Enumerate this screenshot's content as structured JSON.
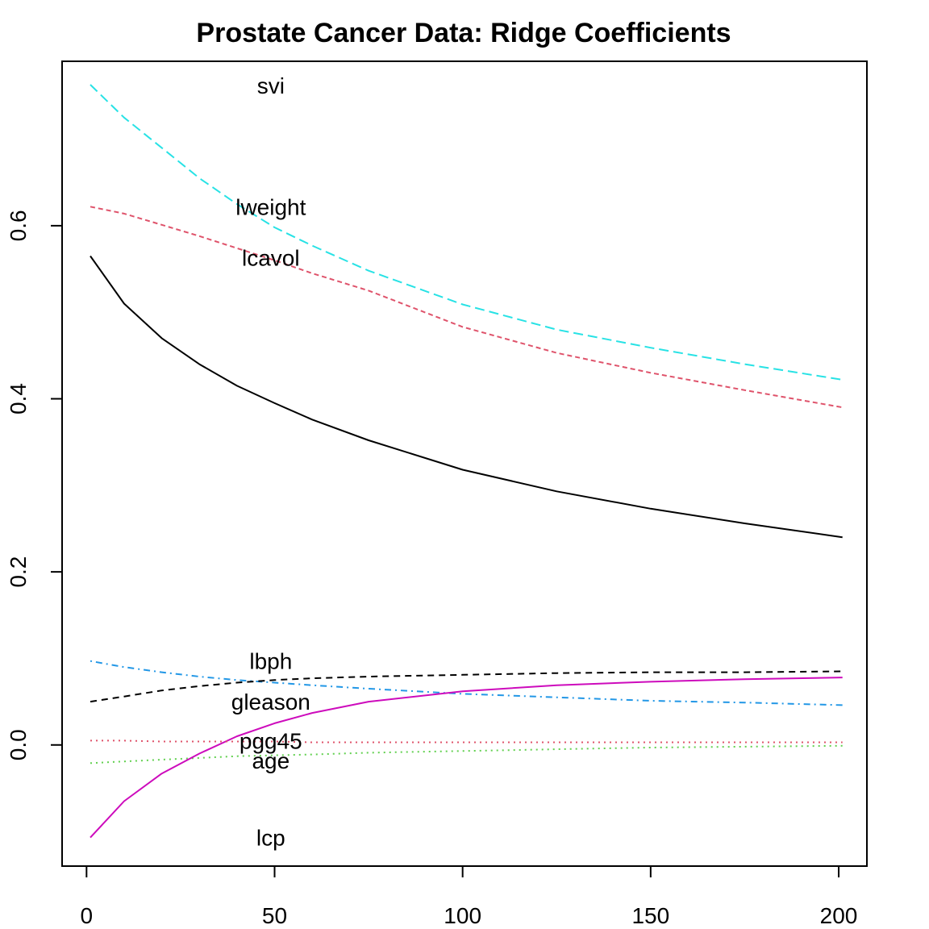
{
  "chart_data": {
    "type": "line",
    "title": "Prostate Cancer Data: Ridge Coefficients",
    "xlabel": "",
    "ylabel": "",
    "xlim": [
      -6.5,
      207.5
    ],
    "ylim": [
      -0.14,
      0.79
    ],
    "x_ticks": [
      0,
      50,
      100,
      150,
      200
    ],
    "y_ticks": [
      0.0,
      0.2,
      0.4,
      0.6
    ],
    "y_tick_labels": [
      "0.0",
      "0.2",
      "0.4",
      "0.6"
    ],
    "grid": false,
    "legend": "none",
    "x": [
      1,
      10,
      20,
      30,
      40,
      50,
      60,
      75,
      100,
      125,
      150,
      175,
      201
    ],
    "series": [
      {
        "name": "lcavol",
        "color": "#000000",
        "dash": "solid",
        "values": [
          0.565,
          0.51,
          0.47,
          0.44,
          0.415,
          0.395,
          0.376,
          0.352,
          0.318,
          0.293,
          0.273,
          0.256,
          0.24
        ]
      },
      {
        "name": "lweight",
        "color": "#DF536B",
        "dash": "short-dash",
        "values": [
          0.622,
          0.614,
          0.601,
          0.588,
          0.574,
          0.56,
          0.545,
          0.525,
          0.483,
          0.453,
          0.43,
          0.41,
          0.39
        ]
      },
      {
        "name": "age",
        "color": "#61D04F",
        "dash": "dotted",
        "values": [
          -0.021,
          -0.019,
          -0.017,
          -0.015,
          -0.013,
          -0.012,
          -0.011,
          -0.009,
          -0.007,
          -0.005,
          -0.003,
          -0.002,
          -0.001
        ]
      },
      {
        "name": "lbph",
        "color": "#2297E6",
        "dash": "dot-dash",
        "values": [
          0.097,
          0.09,
          0.084,
          0.079,
          0.075,
          0.072,
          0.069,
          0.065,
          0.059,
          0.055,
          0.051,
          0.049,
          0.046
        ]
      },
      {
        "name": "svi",
        "color": "#28E2E5",
        "dash": "long-dash",
        "values": [
          0.763,
          0.725,
          0.69,
          0.655,
          0.625,
          0.598,
          0.577,
          0.548,
          0.509,
          0.48,
          0.459,
          0.44,
          0.422
        ]
      },
      {
        "name": "lcp",
        "color": "#CD0BBC",
        "dash": "solid",
        "values": [
          -0.107,
          -0.065,
          -0.033,
          -0.01,
          0.01,
          0.025,
          0.037,
          0.05,
          0.062,
          0.069,
          0.073,
          0.076,
          0.078
        ]
      },
      {
        "name": "gleason",
        "color": "#000000",
        "dash": "dashed",
        "values": [
          0.05,
          0.056,
          0.063,
          0.068,
          0.072,
          0.075,
          0.077,
          0.079,
          0.081,
          0.083,
          0.084,
          0.084,
          0.085
        ]
      },
      {
        "name": "pgg45",
        "color": "#DF536B",
        "dash": "dotted",
        "values": [
          0.005,
          0.005,
          0.004,
          0.004,
          0.004,
          0.004,
          0.003,
          0.003,
          0.003,
          0.003,
          0.003,
          0.003,
          0.003
        ]
      }
    ],
    "annotations": [
      {
        "text": "svi",
        "x": 49,
        "y": 0.762
      },
      {
        "text": "lweight",
        "x": 49,
        "y": 0.622
      },
      {
        "text": "lcavol",
        "x": 49,
        "y": 0.563
      },
      {
        "text": "lbph",
        "x": 49,
        "y": 0.097
      },
      {
        "text": "gleason",
        "x": 49,
        "y": 0.05
      },
      {
        "text": "pgg45",
        "x": 49,
        "y": 0.005
      },
      {
        "text": "age",
        "x": 49,
        "y": -0.018
      },
      {
        "text": "lcp",
        "x": 49,
        "y": -0.107
      }
    ]
  }
}
